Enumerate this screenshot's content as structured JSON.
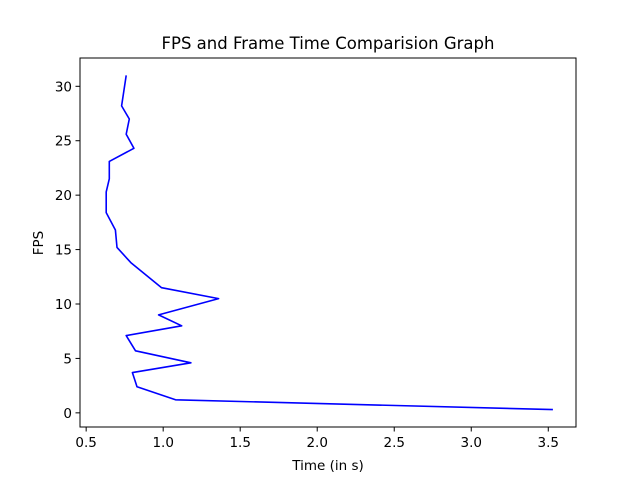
{
  "chart_data": {
    "type": "line",
    "title": "FPS and Frame Time Comparision Graph",
    "xlabel": "Time (in s)",
    "ylabel": "FPS",
    "xlim": [
      0.46,
      3.68
    ],
    "ylim": [
      -1.3,
      32.6
    ],
    "xticks": [
      0.5,
      1.0,
      1.5,
      2.0,
      2.5,
      3.0,
      3.5
    ],
    "xtick_labels": [
      "0.5",
      "1.0",
      "1.5",
      "2.0",
      "2.5",
      "3.0",
      "3.5"
    ],
    "yticks": [
      0,
      5,
      10,
      15,
      20,
      25,
      30
    ],
    "ytick_labels": [
      "0",
      "5",
      "10",
      "15",
      "20",
      "25",
      "30"
    ],
    "grid": false,
    "series": [
      {
        "color": "#0000ff",
        "x": [
          3.53,
          1.08,
          0.83,
          0.8,
          1.18,
          0.82,
          0.76,
          1.12,
          0.97,
          1.36,
          0.99,
          0.79,
          0.7,
          0.69,
          0.63,
          0.63,
          0.65,
          0.65,
          0.81,
          0.76,
          0.78,
          0.73,
          0.76
        ],
        "y": [
          0.3,
          1.2,
          2.4,
          3.7,
          4.6,
          5.7,
          7.1,
          8.0,
          9.0,
          10.5,
          11.5,
          13.8,
          15.2,
          16.8,
          18.4,
          20.3,
          21.5,
          23.1,
          24.3,
          25.6,
          27.0,
          28.2,
          31.0
        ]
      }
    ]
  }
}
